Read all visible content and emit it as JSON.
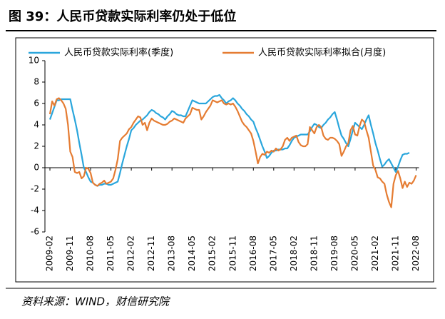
{
  "chart_data": {
    "type": "line",
    "title": "图 39：人民币贷款实际利率仍处于低位",
    "source": "资料来源：WIND，财信研究院",
    "categories": [
      "2009-02",
      null,
      null,
      null,
      null,
      null,
      null,
      null,
      null,
      "2009-11",
      null,
      null,
      null,
      null,
      null,
      null,
      null,
      null,
      "2010-08",
      null,
      null,
      null,
      null,
      null,
      null,
      null,
      null,
      "2011-05",
      null,
      null,
      null,
      null,
      null,
      null,
      null,
      null,
      "2012-02",
      null,
      null,
      null,
      null,
      null,
      null,
      null,
      null,
      "2012-11",
      null,
      null,
      null,
      null,
      null,
      null,
      null,
      null,
      "2013-08",
      null,
      null,
      null,
      null,
      null,
      null,
      null,
      null,
      "2014-05",
      null,
      null,
      null,
      null,
      null,
      null,
      null,
      null,
      "2015-02",
      null,
      null,
      null,
      null,
      null,
      null,
      null,
      null,
      "2015-11",
      null,
      null,
      null,
      null,
      null,
      null,
      null,
      null,
      "2016-08",
      null,
      null,
      null,
      null,
      null,
      null,
      null,
      null,
      "2017-05",
      null,
      null,
      null,
      null,
      null,
      null,
      null,
      null,
      "2018-02",
      null,
      null,
      null,
      null,
      null,
      null,
      null,
      null,
      "2018-11",
      null,
      null,
      null,
      null,
      null,
      null,
      null,
      null,
      "2019-08",
      null,
      null,
      null,
      null,
      null,
      null,
      null,
      null,
      "2020-05",
      null,
      null,
      null,
      null,
      null,
      null,
      null,
      null,
      "2021-02",
      null,
      null,
      null,
      null,
      null,
      null,
      null,
      null,
      "2021-11",
      null,
      null,
      null,
      null,
      null,
      null,
      null,
      null,
      "2022-08"
    ],
    "series": [
      {
        "name": "人民币贷款实际利率(季度)",
        "color": "#2aa6dc",
        "values": [
          4.5,
          5.1,
          5.7,
          6.3,
          6.3,
          6.4,
          6.4,
          6.4,
          6.4,
          6.4,
          5.4,
          4.5,
          3.5,
          2.3,
          1.2,
          0.0,
          -0.4,
          -0.9,
          -1.3,
          -1.4,
          -1.6,
          -1.7,
          -1.6,
          -1.6,
          -1.5,
          -1.5,
          -1.6,
          -1.6,
          -1.5,
          -1.4,
          -1.3,
          -0.5,
          0.4,
          1.2,
          2.0,
          2.7,
          3.5,
          3.7,
          4.0,
          4.2,
          4.4,
          4.5,
          4.7,
          4.9,
          5.2,
          5.4,
          5.3,
          5.1,
          5.0,
          4.8,
          4.7,
          4.5,
          4.8,
          5.0,
          5.3,
          5.2,
          5.0,
          4.9,
          4.9,
          4.8,
          4.8,
          5.3,
          5.8,
          6.3,
          6.2,
          6.1,
          6.0,
          6.0,
          6.0,
          6.0,
          6.2,
          6.4,
          6.6,
          6.7,
          6.7,
          6.8,
          6.5,
          6.3,
          6.0,
          6.2,
          6.3,
          6.5,
          6.3,
          6.0,
          5.8,
          5.5,
          5.3,
          5.0,
          4.8,
          4.5,
          4.3,
          3.7,
          3.2,
          2.6,
          2.0,
          1.5,
          0.9,
          1.1,
          1.4,
          1.6,
          1.6,
          1.7,
          1.7,
          1.7,
          1.8,
          1.8,
          2.1,
          2.5,
          2.8,
          2.9,
          3.0,
          3.1,
          3.1,
          3.1,
          3.1,
          3.4,
          3.8,
          4.1,
          4.0,
          3.8,
          3.7,
          4.0,
          4.2,
          4.5,
          4.7,
          5.0,
          5.2,
          4.5,
          3.7,
          3.0,
          2.7,
          2.3,
          2.0,
          2.7,
          3.5,
          4.2,
          4.0,
          3.8,
          3.6,
          4.0,
          4.5,
          4.9,
          4.0,
          3.2,
          2.3,
          1.6,
          0.8,
          0.1,
          0.3,
          0.6,
          0.8,
          0.4,
          0.0,
          -0.4,
          0.1,
          0.7,
          1.2,
          1.3,
          1.3,
          1.4,
          null,
          null,
          null
        ]
      },
      {
        "name": "人民币贷款实际利率拟合(月度)",
        "color": "#e57c32",
        "values": [
          5.0,
          6.2,
          5.8,
          6.4,
          6.5,
          6.3,
          6.0,
          5.5,
          4.0,
          1.5,
          1.0,
          -0.4,
          -0.5,
          -0.4,
          -1.0,
          -0.8,
          0.0,
          -0.1,
          -0.5,
          -1.4,
          -1.6,
          -1.7,
          -1.5,
          -1.4,
          -1.2,
          -1.5,
          -1.4,
          -1.3,
          -1.0,
          -0.2,
          0.8,
          2.5,
          2.8,
          3.0,
          3.2,
          3.6,
          3.8,
          4.2,
          4.5,
          4.8,
          4.7,
          4.0,
          4.2,
          3.5,
          4.2,
          4.6,
          4.4,
          4.3,
          4.2,
          4.1,
          4.0,
          4.0,
          4.1,
          4.3,
          4.4,
          4.6,
          4.5,
          4.4,
          4.3,
          4.2,
          4.6,
          4.8,
          5.0,
          5.6,
          5.5,
          5.4,
          5.4,
          4.5,
          4.8,
          5.2,
          5.5,
          5.8,
          6.3,
          6.2,
          6.1,
          6.2,
          6.3,
          6.0,
          5.9,
          6.0,
          5.9,
          6.0,
          5.7,
          5.3,
          4.8,
          4.3,
          4.0,
          3.8,
          3.5,
          3.2,
          2.5,
          1.5,
          0.4,
          1.0,
          1.3,
          1.2,
          1.5,
          1.4,
          1.6,
          1.5,
          1.8,
          1.6,
          1.7,
          2.0,
          2.6,
          2.8,
          2.5,
          2.8,
          2.9,
          3.0,
          2.4,
          2.1,
          2.0,
          2.0,
          2.2,
          3.8,
          3.5,
          3.2,
          3.8,
          4.0,
          3.8,
          3.0,
          2.7,
          2.6,
          2.8,
          2.8,
          2.7,
          2.5,
          2.2,
          1.1,
          1.5,
          2.0,
          2.3,
          3.5,
          3.9,
          3.1,
          3.0,
          3.9,
          4.5,
          4.3,
          3.5,
          2.8,
          1.5,
          0.2,
          -0.2,
          -0.9,
          -1.0,
          -1.3,
          -1.5,
          -2.5,
          -3.2,
          -3.7,
          -1.5,
          -0.7,
          -0.3,
          -1.0,
          -1.9,
          -1.3,
          -1.8,
          -1.4,
          -1.5,
          -1.2,
          -0.7
        ]
      }
    ],
    "ylim": [
      -6,
      10
    ],
    "yticks": [
      -6,
      -4,
      -2,
      0,
      2,
      4,
      6,
      8,
      10
    ],
    "legend": "top"
  }
}
